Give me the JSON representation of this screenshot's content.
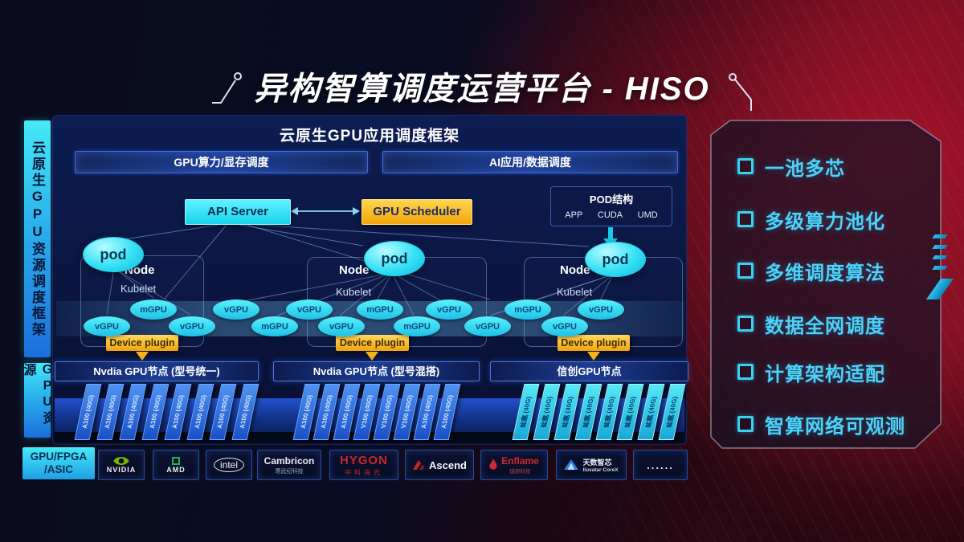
{
  "title": {
    "text": "异构智算调度运营平台 - HISO"
  },
  "sidebar": {
    "top": "云原生GPU资源调度框架",
    "bottom": "GPU资源"
  },
  "framework": {
    "header": "云原生GPU应用调度框架",
    "bars": [
      "GPU算力/显存调度",
      "AI应用/数据调度"
    ],
    "api_server": "API Server",
    "gpu_scheduler": "GPU Scheduler",
    "pod_struct": {
      "title": "POD结构",
      "items": [
        "APP",
        "CUDA",
        "UMD"
      ]
    },
    "nodes": [
      {
        "pod": "pod",
        "label": "Node",
        "agent": "Kubelet",
        "plugin": "Device plugin"
      },
      {
        "pod": "pod",
        "label": "Node",
        "agent": "Kubelet",
        "plugin": "Device plugin"
      },
      {
        "pod": "pod",
        "label": "Node",
        "agent": "Kubelet",
        "plugin": "Device plugin"
      }
    ],
    "gpu_units": {
      "upper": [
        "mGPU",
        "vGPU",
        "vGPU",
        "mGPU",
        "vGPU",
        "mGPU",
        "vGPU"
      ],
      "lower": [
        "vGPU",
        "vGPU",
        "mGPU",
        "vGPU",
        "mGPU",
        "vGPU",
        "vGPU"
      ]
    }
  },
  "gpu_clusters": [
    {
      "label": "Nvdia GPU节点 (型号统一)",
      "style": "blue",
      "cards": [
        "A100 (40G)",
        "A100 (40G)",
        "A100 (40G)",
        "A100 (40G)",
        "A100 (40G)",
        "A100 (40G)",
        "A100 (40G)",
        "A100 (40G)"
      ]
    },
    {
      "label": "Nvdia GPU节点 (型号混搭)",
      "style": "blue",
      "cards": [
        "A100 (40G)",
        "A100 (40G)",
        "A100 (40G)",
        "V100 (40G)",
        "V100 (40G)",
        "V100 (40G)",
        "A100 (40G)",
        "A100 (40G)"
      ]
    },
    {
      "label": "信创GPU节点",
      "style": "cyan",
      "cards": [
        "昇腾 (40G)",
        "昇腾 (40G)",
        "昇腾 (40G)",
        "昇腾 (40G)",
        "昇腾 (40G)",
        "昇腾 (40G)",
        "昇腾 (40G)",
        "昇腾 (40G)"
      ]
    }
  ],
  "hardware": {
    "label_line1": "GPU/FPGA",
    "label_line2": "/ASIC",
    "vendors": [
      {
        "name": "NVIDIA",
        "sub": "",
        "logo": "nvidia-eye-icon"
      },
      {
        "name": "AMD",
        "sub": "",
        "logo": "amd-square-icon"
      },
      {
        "name": "intel",
        "sub": "",
        "logo": "intel-oval-icon"
      },
      {
        "name": "Cambricon",
        "sub": "寒武纪科技",
        "logo": "cambricon-wordmark"
      },
      {
        "name": "HYGON",
        "sub": "中科海光",
        "logo": "hygon-wordmark"
      },
      {
        "name": "Ascend",
        "sub": "",
        "logo": "ascend-triangle-icon"
      },
      {
        "name": "Enflame",
        "sub": "燧原科技",
        "logo": "enflame-flame-icon"
      },
      {
        "name": "天数智芯",
        "sub": "Iluvatar CoreX",
        "logo": "iluvatar-triangle-icon"
      },
      {
        "name": "......",
        "sub": "",
        "logo": "dots"
      }
    ]
  },
  "features": [
    "一池多芯",
    "多级算力池化",
    "多维调度算法",
    "数据全网调度",
    "计算架构适配",
    "智算网络可观测"
  ],
  "colors": {
    "cyan_accent": "#2fe3f5",
    "yellow_accent": "#f6b31b",
    "deep_blue": "#0c1a4a",
    "card_blue": "#2f6ce0",
    "card_cyan": "#2cd8ea",
    "red_glow": "#8e1120"
  }
}
